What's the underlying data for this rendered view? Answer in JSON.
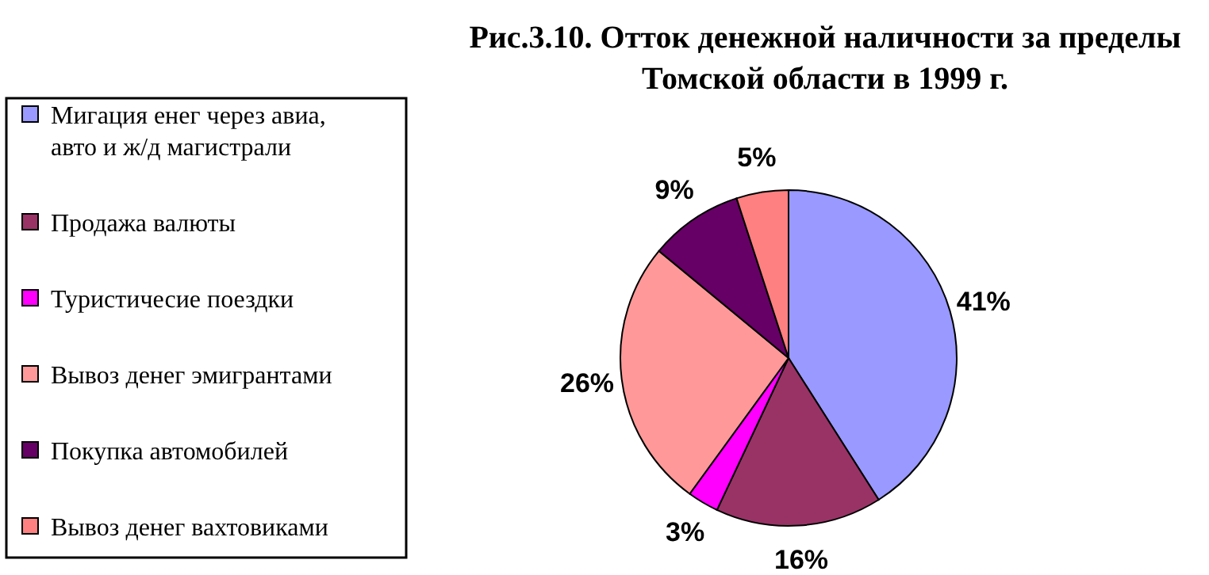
{
  "chart_data": {
    "type": "pie",
    "title": "Рис.3.10. Отток денежной наличности за пределы Томской области в 1999 г.",
    "categories": [
      "Мигация енег через авиа, авто и ж/д магистрали",
      "Продажа валюты",
      "Туристичесие поездки",
      "Вывоз денег эмигрантами",
      "Покупка автомобилей",
      "Вывоз денег вахтовиками"
    ],
    "values": [
      41,
      16,
      3,
      26,
      9,
      5
    ],
    "colors": [
      "#9999ff",
      "#993366",
      "#ff00ff",
      "#ff9999",
      "#660066",
      "#ff8080"
    ],
    "value_labels": [
      "41%",
      "16%",
      "3%",
      "26%",
      "9%",
      "5%"
    ],
    "legend": "left"
  }
}
